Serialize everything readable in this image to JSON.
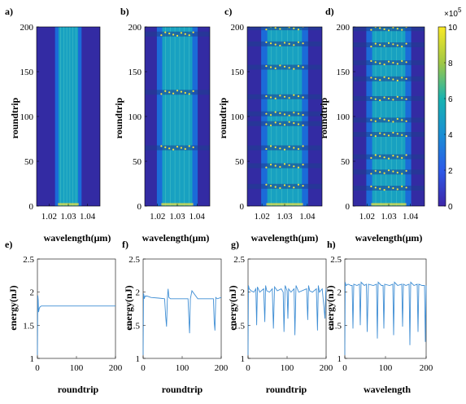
{
  "chart_data": [
    {
      "type": "heatmap",
      "panel": "a)",
      "xlabel": "wavelength(μm)",
      "ylabel": "roundtrip",
      "xticks": [
        "1.02",
        "1.03",
        "1.04"
      ],
      "xtick_values": [
        1.02,
        1.03,
        1.04
      ],
      "yticks": [
        "0",
        "50",
        "100",
        "150",
        "200"
      ],
      "ytick_values": [
        0,
        50,
        100,
        150,
        200
      ],
      "xlim": [
        1.0135,
        1.0465
      ],
      "ylim": [
        0,
        200
      ],
      "spectrum_center": 1.03,
      "spectrum_halfwidth": 0.006,
      "pulsation_roundtrips": []
    },
    {
      "type": "heatmap",
      "panel": "b)",
      "xlabel": "wavelength(μm)",
      "ylabel": "roundtrip",
      "xticks": [
        "1.02",
        "1.03",
        "1.04"
      ],
      "xtick_values": [
        1.02,
        1.03,
        1.04
      ],
      "yticks": [
        "0",
        "50",
        "100",
        "150",
        "200"
      ],
      "ytick_values": [
        0,
        50,
        100,
        150,
        200
      ],
      "xlim": [
        1.0135,
        1.0465
      ],
      "ylim": [
        0,
        200
      ],
      "spectrum_center": 1.03,
      "spectrum_halfwidth": 0.009,
      "pulsation_roundtrips": [
        65,
        127,
        192
      ]
    },
    {
      "type": "heatmap",
      "panel": "c)",
      "xlabel": "wavelength(μm)",
      "ylabel": "roundtrip",
      "xticks": [
        "1.02",
        "1.03",
        "1.04"
      ],
      "xtick_values": [
        1.02,
        1.03,
        1.04
      ],
      "yticks": [
        "0",
        "50",
        "100",
        "150",
        "200"
      ],
      "ytick_values": [
        0,
        50,
        100,
        150,
        200
      ],
      "xlim": [
        1.0135,
        1.0465
      ],
      "ylim": [
        0,
        200
      ],
      "spectrum_center": 1.03,
      "spectrum_halfwidth": 0.009,
      "pulsation_roundtrips": [
        22,
        45,
        65,
        92,
        103,
        122,
        155,
        181,
        199
      ]
    },
    {
      "type": "heatmap",
      "panel": "d)",
      "xlabel": "wavelength(μm)",
      "ylabel": "roundtrip",
      "xticks": [
        "1.02",
        "1.03",
        "1.04"
      ],
      "xtick_values": [
        1.02,
        1.03,
        1.04
      ],
      "yticks": [
        "0",
        "50",
        "100",
        "150",
        "200"
      ],
      "ytick_values": [
        0,
        50,
        100,
        150,
        200
      ],
      "xlim": [
        1.0135,
        1.0465
      ],
      "ylim": [
        0,
        200
      ],
      "spectrum_center": 1.03,
      "spectrum_halfwidth": 0.009,
      "pulsation_roundtrips": [
        20,
        38,
        55,
        80,
        96,
        120,
        142,
        160,
        180,
        198
      ]
    },
    {
      "type": "line",
      "panel": "e)",
      "xlabel": "roundtrip",
      "ylabel": "energy(nJ)",
      "xlim": [
        0,
        200
      ],
      "ylim": [
        1,
        2.5
      ],
      "xticks": [
        "0",
        "100",
        "200"
      ],
      "xtick_values": [
        0,
        100,
        200
      ],
      "yticks": [
        "1",
        "1.5",
        "2",
        "2.5"
      ],
      "ytick_values": [
        1,
        1.5,
        2,
        2.5
      ],
      "x": [
        0,
        1,
        2,
        3,
        5,
        7,
        10,
        15,
        20,
        200
      ],
      "values": [
        1.05,
        1.95,
        1.88,
        1.7,
        1.76,
        1.78,
        1.79,
        1.79,
        1.79,
        1.79
      ]
    },
    {
      "type": "line",
      "panel": "f)",
      "xlabel": "roundtrip",
      "ylabel": "energy(nJ)",
      "xlim": [
        0,
        200
      ],
      "ylim": [
        1,
        2.5
      ],
      "xticks": [
        "0",
        "100",
        "200"
      ],
      "xtick_values": [
        0,
        100,
        200
      ],
      "yticks": [
        "1",
        "1.5",
        "2",
        "2.5"
      ],
      "ytick_values": [
        1,
        1.5,
        2,
        2.5
      ],
      "x": [
        0,
        1,
        2,
        3,
        5,
        10,
        20,
        40,
        55,
        58,
        60,
        62,
        64,
        66,
        70,
        85,
        100,
        110,
        115,
        117,
        119,
        121,
        125,
        140,
        160,
        175,
        180,
        182,
        184,
        186,
        190,
        200
      ],
      "values": [
        1.05,
        1.98,
        1.95,
        1.9,
        1.94,
        1.94,
        1.92,
        1.91,
        1.9,
        1.62,
        1.48,
        1.9,
        2.05,
        1.92,
        1.9,
        1.9,
        1.9,
        1.9,
        1.9,
        1.62,
        1.38,
        1.9,
        2.02,
        1.9,
        1.9,
        1.9,
        1.9,
        1.55,
        1.42,
        1.92,
        1.9,
        1.92
      ]
    },
    {
      "type": "line",
      "panel": "g)",
      "xlabel": "roundtrip",
      "ylabel": "energy(nJ)",
      "xlim": [
        0,
        200
      ],
      "ylim": [
        1,
        2.5
      ],
      "xticks": [
        "0",
        "100",
        "200"
      ],
      "xtick_values": [
        0,
        100,
        200
      ],
      "yticks": [
        "1",
        "1.5",
        "2",
        "2.5"
      ],
      "ytick_values": [
        1,
        1.5,
        2,
        2.5
      ],
      "x": [
        0,
        1,
        3,
        8,
        15,
        20,
        22,
        24,
        30,
        40,
        43,
        45,
        48,
        55,
        62,
        65,
        68,
        75,
        85,
        90,
        92,
        95,
        100,
        102,
        104,
        110,
        118,
        120,
        123,
        130,
        150,
        153,
        155,
        158,
        165,
        175,
        178,
        180,
        183,
        190,
        197,
        199,
        200
      ],
      "values": [
        1.05,
        2.1,
        2.05,
        2.02,
        2.0,
        2.05,
        1.5,
        2.08,
        2.0,
        2.05,
        1.55,
        2.1,
        2.02,
        2.0,
        2.05,
        1.45,
        2.08,
        2.02,
        2.05,
        2.0,
        1.4,
        2.1,
        2.02,
        1.6,
        2.05,
        2.0,
        2.05,
        1.35,
        2.1,
        2.0,
        2.05,
        1.58,
        2.1,
        2.02,
        2.0,
        2.05,
        1.42,
        2.1,
        2.0,
        2.05,
        1.6,
        2.0,
        2.05
      ]
    },
    {
      "type": "line",
      "panel": "h)",
      "xlabel": "wavelength",
      "ylabel": "energy(nJ)",
      "xlim": [
        0,
        200
      ],
      "ylim": [
        1,
        2.5
      ],
      "xticks": [
        "0",
        "100",
        "200"
      ],
      "xtick_values": [
        0,
        100,
        200
      ],
      "yticks": [
        "1",
        "1.5",
        "2",
        "2.5"
      ],
      "ytick_values": [
        1,
        1.5,
        2,
        2.5
      ],
      "x": [
        0,
        1,
        3,
        8,
        15,
        18,
        20,
        22,
        30,
        36,
        38,
        40,
        48,
        53,
        55,
        58,
        70,
        78,
        80,
        82,
        90,
        94,
        96,
        98,
        110,
        118,
        120,
        122,
        130,
        140,
        142,
        144,
        150,
        158,
        160,
        162,
        170,
        178,
        180,
        182,
        190,
        196,
        198,
        200
      ],
      "values": [
        1.05,
        2.15,
        2.1,
        2.12,
        2.1,
        2.1,
        1.45,
        2.12,
        2.1,
        2.12,
        1.5,
        2.15,
        2.1,
        2.12,
        1.4,
        2.12,
        2.1,
        2.12,
        1.3,
        2.15,
        2.1,
        2.1,
        1.45,
        2.12,
        2.1,
        2.12,
        1.35,
        2.15,
        2.1,
        2.12,
        1.48,
        2.12,
        2.1,
        2.12,
        1.2,
        2.15,
        2.1,
        2.12,
        1.4,
        2.12,
        2.1,
        2.1,
        1.25,
        2.1
      ]
    }
  ],
  "colorbar": {
    "scale_label": "×10",
    "scale_exponent": "5",
    "ticks": [
      "0",
      "2",
      "4",
      "6",
      "8",
      "10"
    ],
    "tick_values": [
      0,
      2,
      4,
      6,
      8,
      10
    ],
    "range": [
      0,
      10
    ],
    "colormap": "parula"
  },
  "colors": {
    "line": "#3f8ed4",
    "background_map": "#332ba3",
    "map_mid": "#1b6bd8",
    "map_core": "#18aabd",
    "map_peak": "#f5e43a"
  }
}
